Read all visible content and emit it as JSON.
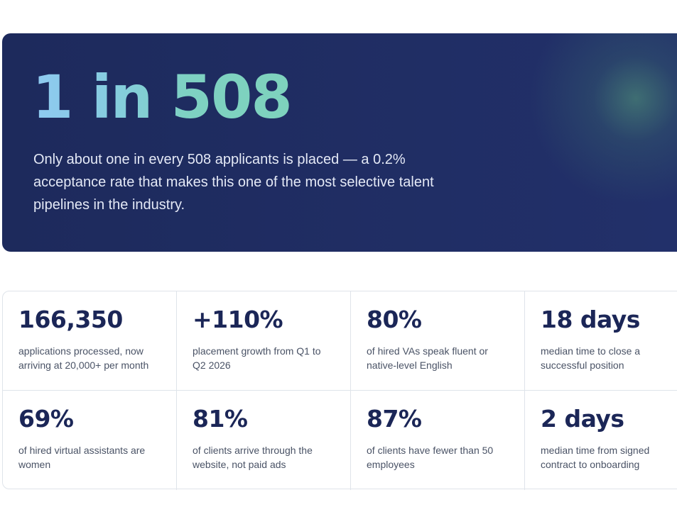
{
  "hero": {
    "headline": "1 in 508",
    "description": "Only about one in every 508 applicants is placed — a 0.2% acceptance rate that makes this one of the most selective talent pipelines in the industry."
  },
  "stats": [
    {
      "value": "166,350",
      "label": "applications processed, now arriving at 20,000+ per month"
    },
    {
      "value": "+110%",
      "label": "placement growth from Q1 to Q2 2026"
    },
    {
      "value": "80%",
      "label": "of hired VAs speak fluent or native-level English"
    },
    {
      "value": "18 days",
      "label": "median time to close a successful position"
    },
    {
      "value": "69%",
      "label": "of hired virtual assistants are women"
    },
    {
      "value": "81%",
      "label": "of clients arrive through the website, not paid ads"
    },
    {
      "value": "87%",
      "label": "of clients have fewer than 50 employees"
    },
    {
      "value": "2 days",
      "label": "median time from signed contract to onboarding"
    }
  ],
  "colors": {
    "hero_background": "#1e2b5e",
    "headline_gradient_start": "#8fc9f1",
    "headline_gradient_end": "#7ed2bd",
    "stat_value": "#1b2657",
    "stat_label": "#4a5366",
    "card_border": "#dfe4ea"
  }
}
